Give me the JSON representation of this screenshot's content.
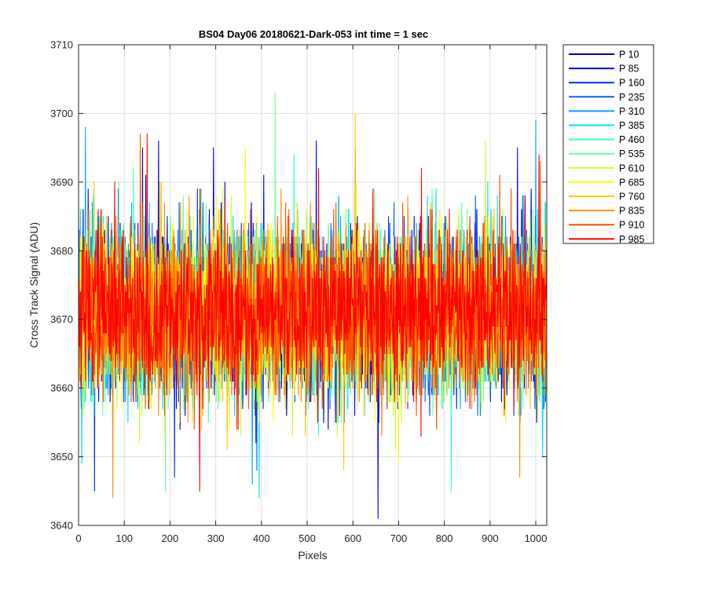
{
  "chart_data": {
    "type": "line",
    "title": "BS04 Day06 20180621-Dark-053 int time = 1 sec",
    "xlabel": "Pixels",
    "ylabel": "Cross Track Signal (ADU)",
    "xlim": [
      0,
      1024
    ],
    "ylim": [
      3640,
      3710
    ],
    "xticks": [
      0,
      100,
      200,
      300,
      400,
      500,
      600,
      700,
      800,
      900,
      1000
    ],
    "yticks": [
      3640,
      3650,
      3660,
      3670,
      3680,
      3690,
      3700,
      3710
    ],
    "xtick_labels": [
      "0",
      "100",
      "200",
      "300",
      "400",
      "500",
      "600",
      "700",
      "800",
      "900",
      "1000"
    ],
    "ytick_labels": [
      "3640",
      "3650",
      "3660",
      "3670",
      "3680",
      "3690",
      "3700",
      "3710"
    ],
    "grid": true,
    "legend_position": "outside-top-right",
    "signal_summary": {
      "num_pixels": 1024,
      "mean": 3671,
      "typical_range": [
        3655,
        3688
      ],
      "max_observed": 3703,
      "min_observed": 3641
    },
    "series": [
      {
        "name": "P 10",
        "color": "#0000b4",
        "mean": 3671,
        "spread": 5.8,
        "extremes": [
          [
            15,
            3687
          ],
          [
            140,
            3695
          ],
          [
            295,
            3695
          ]
        ]
      },
      {
        "name": "P 85",
        "color": "#0000f0",
        "mean": 3671,
        "spread": 5.8,
        "extremes": [
          [
            655,
            3641
          ],
          [
            175,
            3696
          ],
          [
            520,
            3696
          ],
          [
            960,
            3695
          ]
        ]
      },
      {
        "name": "P 160",
        "color": "#0028ff",
        "mean": 3671,
        "spread": 5.8,
        "extremes": [
          [
            35,
            3645
          ],
          [
            210,
            3647
          ],
          [
            605,
            3695
          ]
        ]
      },
      {
        "name": "P 235",
        "color": "#0064ff",
        "mean": 3671,
        "spread": 5.8,
        "extremes": [
          [
            390,
            3648
          ],
          [
            690,
            3687
          ]
        ]
      },
      {
        "name": "P 310",
        "color": "#00a0ff",
        "mean": 3671,
        "spread": 5.8,
        "extremes": [
          [
            15,
            3698
          ],
          [
            380,
            3646
          ],
          [
            1000,
            3699
          ]
        ]
      },
      {
        "name": "P 385",
        "color": "#00dcff",
        "mean": 3671,
        "spread": 5.8,
        "extremes": [
          [
            395,
            3644
          ],
          [
            895,
            3690
          ]
        ]
      },
      {
        "name": "P 460",
        "color": "#32ffc8",
        "mean": 3671,
        "spread": 5.8,
        "extremes": [
          [
            815,
            3645
          ],
          [
            120,
            3692
          ]
        ]
      },
      {
        "name": "P 535",
        "color": "#64ff96",
        "mean": 3671,
        "spread": 5.8,
        "extremes": [
          [
            430,
            3703
          ],
          [
            190,
            3645
          ]
        ]
      },
      {
        "name": "P 610",
        "color": "#c8ff32",
        "mean": 3671,
        "spread": 5.8,
        "extremes": [
          [
            890,
            3696
          ],
          [
            315,
            3689
          ]
        ]
      },
      {
        "name": "P 685",
        "color": "#ffff00",
        "mean": 3671,
        "spread": 5.8,
        "extremes": [
          [
            365,
            3695
          ],
          [
            700,
            3649
          ]
        ]
      },
      {
        "name": "P 760",
        "color": "#ffc800",
        "mean": 3671,
        "spread": 5.8,
        "extremes": [
          [
            605,
            3700
          ],
          [
            580,
            3648
          ]
        ]
      },
      {
        "name": "P 835",
        "color": "#ff8c00",
        "mean": 3671,
        "spread": 5.8,
        "extremes": [
          [
            75,
            3644
          ],
          [
            965,
            3647
          ]
        ]
      },
      {
        "name": "P 910",
        "color": "#ff5000",
        "mean": 3671,
        "spread": 5.8,
        "extremes": [
          [
            135,
            3697
          ],
          [
            1010,
            3693
          ]
        ]
      },
      {
        "name": "P 985",
        "color": "#ff0000",
        "mean": 3671,
        "spread": 5.8,
        "extremes": [
          [
            150,
            3697
          ],
          [
            265,
            3645
          ],
          [
            525,
            3692
          ],
          [
            750,
            3692
          ]
        ]
      }
    ]
  }
}
